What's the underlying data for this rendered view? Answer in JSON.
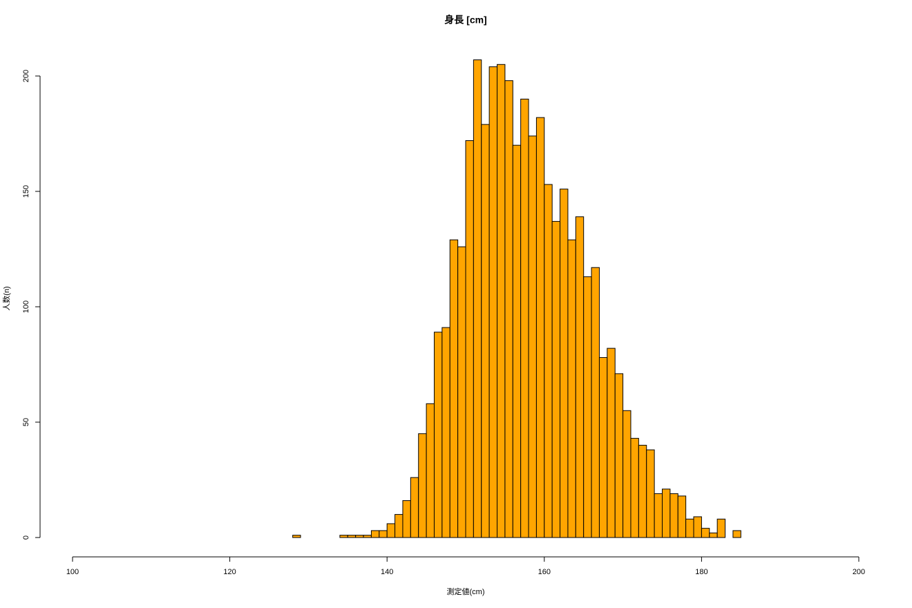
{
  "chart_data": {
    "type": "histogram",
    "title": "身長 [cm]",
    "x_label": "測定値(cm)",
    "y_label": "人数(n)",
    "bins": [
      128,
      129,
      130,
      131,
      132,
      133,
      134,
      135,
      136,
      137,
      138,
      139,
      140,
      141,
      142,
      143,
      144,
      145,
      146,
      147,
      148,
      149,
      150,
      151,
      152,
      153,
      154,
      155,
      156,
      157,
      158,
      159,
      160,
      161,
      162,
      163,
      164,
      165,
      166,
      167,
      168,
      169,
      170,
      171,
      172,
      173,
      174,
      175,
      176,
      177,
      178,
      179,
      180,
      181,
      182,
      183,
      184,
      185
    ],
    "values": [
      1,
      0,
      0,
      0,
      0,
      0,
      1,
      1,
      1,
      1,
      3,
      3,
      6,
      10,
      16,
      26,
      45,
      58,
      89,
      91,
      129,
      126,
      172,
      207,
      179,
      204,
      205,
      198,
      170,
      190,
      174,
      182,
      153,
      137,
      151,
      129,
      139,
      113,
      117,
      78,
      82,
      71,
      55,
      43,
      40,
      38,
      19,
      21,
      19,
      18,
      8,
      9,
      4,
      2,
      8,
      0,
      3
    ],
    "color": "#ffa500",
    "xlim": [
      100,
      200
    ],
    "xticks": [
      100,
      120,
      140,
      160,
      180,
      200
    ],
    "ylim": [
      0,
      210
    ],
    "yticks": [
      0,
      50,
      100,
      150,
      200
    ]
  }
}
